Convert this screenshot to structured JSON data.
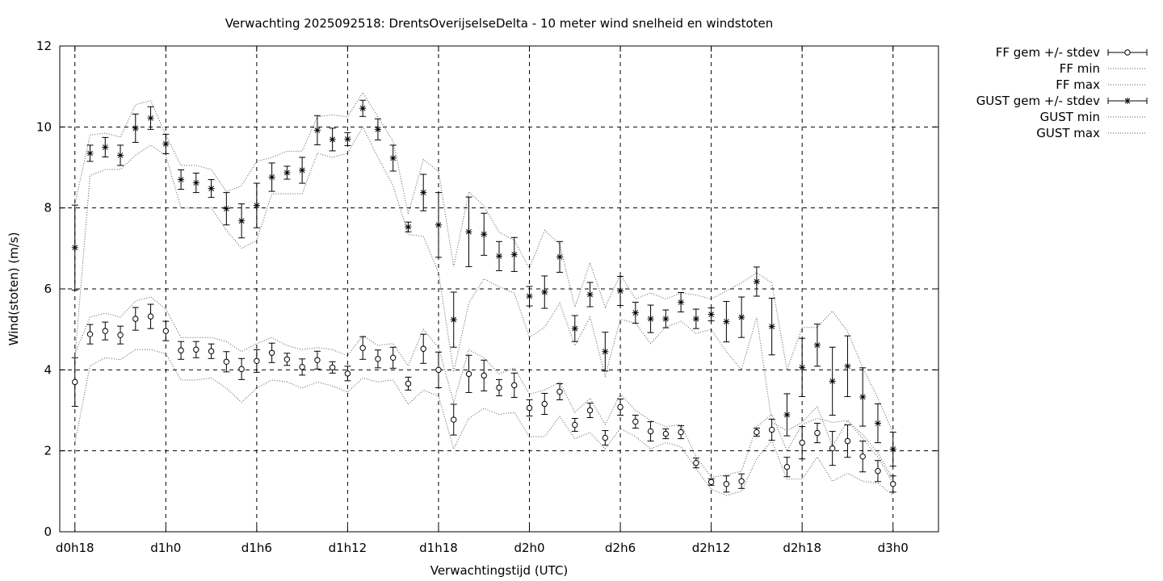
{
  "chart_data": {
    "type": "line",
    "title": "Verwachting 2025092518: DrentsOverijselseDelta - 10 meter wind snelheid en windstoten",
    "xlabel": "Verwachtingstijd (UTC)",
    "ylabel": "Wind(stoten) (m/s)",
    "xlim": [
      -1,
      57
    ],
    "ylim": [
      0,
      12
    ],
    "yticks": [
      0,
      2,
      4,
      6,
      8,
      10,
      12
    ],
    "xticks": [
      {
        "x": 0,
        "label": "d0h18"
      },
      {
        "x": 6,
        "label": "d1h0"
      },
      {
        "x": 12,
        "label": "d1h6"
      },
      {
        "x": 18,
        "label": "d1h12"
      },
      {
        "x": 24,
        "label": "d1h18"
      },
      {
        "x": 30,
        "label": "d2h0"
      },
      {
        "x": 36,
        "label": "d2h6"
      },
      {
        "x": 42,
        "label": "d2h12"
      },
      {
        "x": 48,
        "label": "d2h18"
      },
      {
        "x": 54,
        "label": "d3h0"
      }
    ],
    "grid": true,
    "legend_position": "outside-top-right",
    "x": [
      0,
      1,
      2,
      3,
      4,
      5,
      6,
      7,
      8,
      9,
      10,
      11,
      12,
      13,
      14,
      15,
      16,
      17,
      18,
      19,
      20,
      21,
      22,
      23,
      24,
      25,
      26,
      27,
      28,
      29,
      30,
      31,
      32,
      33,
      34,
      35,
      36,
      37,
      38,
      39,
      40,
      41,
      42,
      43,
      44,
      45,
      46,
      47,
      48,
      49,
      50,
      51,
      52,
      53,
      54
    ],
    "series": [
      {
        "name": "FF gem +/- stdev",
        "style": "errorbars-circle",
        "values": [
          3.7,
          4.88,
          4.96,
          4.86,
          5.26,
          5.32,
          4.96,
          4.48,
          4.5,
          4.46,
          4.2,
          4.02,
          4.22,
          4.42,
          4.26,
          4.07,
          4.24,
          4.06,
          3.91,
          4.54,
          4.27,
          4.3,
          3.66,
          4.52,
          4.0,
          2.77,
          3.9,
          3.86,
          3.56,
          3.62,
          3.06,
          3.16,
          3.46,
          2.64,
          3.0,
          2.32,
          3.08,
          2.72,
          2.48,
          2.42,
          2.46,
          1.7,
          1.23,
          1.18,
          1.25,
          2.46,
          2.52,
          1.6,
          2.2,
          2.44,
          2.06,
          2.24,
          1.86,
          1.5,
          1.18
        ],
        "stdev": [
          0.6,
          0.24,
          0.22,
          0.22,
          0.28,
          0.3,
          0.24,
          0.22,
          0.2,
          0.18,
          0.25,
          0.26,
          0.28,
          0.24,
          0.15,
          0.2,
          0.22,
          0.14,
          0.18,
          0.28,
          0.22,
          0.26,
          0.16,
          0.36,
          0.44,
          0.38,
          0.46,
          0.38,
          0.2,
          0.3,
          0.2,
          0.26,
          0.2,
          0.16,
          0.18,
          0.18,
          0.2,
          0.16,
          0.24,
          0.12,
          0.16,
          0.12,
          0.08,
          0.2,
          0.18,
          0.1,
          0.26,
          0.24,
          0.4,
          0.24,
          0.42,
          0.4,
          0.38,
          0.26,
          0.2
        ]
      },
      {
        "name": "FF min",
        "style": "dotted",
        "values": [
          2.2,
          4.1,
          4.3,
          4.25,
          4.5,
          4.5,
          4.4,
          3.75,
          3.75,
          3.8,
          3.55,
          3.2,
          3.55,
          3.75,
          3.7,
          3.55,
          3.7,
          3.6,
          3.45,
          3.8,
          3.7,
          3.75,
          3.15,
          3.5,
          3.35,
          2.05,
          2.8,
          3.05,
          2.9,
          2.95,
          2.35,
          2.35,
          2.85,
          2.3,
          2.45,
          2.05,
          2.55,
          2.35,
          2.05,
          2.2,
          2.1,
          1.55,
          1.05,
          0.9,
          1.0,
          1.8,
          2.25,
          1.3,
          1.3,
          1.85,
          1.25,
          1.45,
          1.25,
          1.2,
          0.9
        ]
      },
      {
        "name": "FF max",
        "style": "dotted",
        "values": [
          4.4,
          5.3,
          5.4,
          5.3,
          5.7,
          5.8,
          5.5,
          4.8,
          4.8,
          4.8,
          4.7,
          4.45,
          4.65,
          4.8,
          4.6,
          4.5,
          4.55,
          4.5,
          4.35,
          4.85,
          4.6,
          4.65,
          4.1,
          5.0,
          4.55,
          3.2,
          4.5,
          4.3,
          3.9,
          4.05,
          3.4,
          3.5,
          3.7,
          2.95,
          3.3,
          2.65,
          3.4,
          3.0,
          2.75,
          2.6,
          2.65,
          1.85,
          1.35,
          1.4,
          1.5,
          2.6,
          2.9,
          2.0,
          2.65,
          2.8,
          2.7,
          2.75,
          2.4,
          1.95,
          1.3
        ]
      },
      {
        "name": "GUST gem +/- stdev",
        "style": "errorbars-star",
        "values": [
          7.02,
          9.35,
          9.5,
          9.3,
          9.97,
          10.22,
          9.58,
          8.7,
          8.62,
          8.48,
          7.98,
          7.68,
          8.06,
          8.76,
          8.87,
          8.93,
          9.92,
          9.69,
          9.7,
          10.46,
          9.94,
          9.23,
          7.53,
          8.38,
          7.58,
          5.24,
          7.41,
          7.35,
          6.81,
          6.85,
          5.82,
          5.92,
          6.79,
          5.02,
          5.86,
          4.45,
          5.95,
          5.41,
          5.26,
          5.26,
          5.67,
          5.26,
          5.37,
          5.19,
          5.3,
          6.18,
          5.07,
          2.89,
          4.06,
          4.61,
          3.72,
          4.09,
          3.33,
          2.68,
          2.04
        ],
        "stdev": [
          1.05,
          0.2,
          0.24,
          0.25,
          0.35,
          0.28,
          0.24,
          0.24,
          0.24,
          0.22,
          0.4,
          0.42,
          0.55,
          0.35,
          0.16,
          0.32,
          0.36,
          0.28,
          0.16,
          0.2,
          0.26,
          0.32,
          0.12,
          0.45,
          0.8,
          0.68,
          0.86,
          0.52,
          0.36,
          0.42,
          0.24,
          0.4,
          0.38,
          0.32,
          0.3,
          0.48,
          0.36,
          0.26,
          0.34,
          0.22,
          0.24,
          0.24,
          0.16,
          0.5,
          0.5,
          0.36,
          0.7,
          0.52,
          0.72,
          0.52,
          0.84,
          0.75,
          0.72,
          0.48,
          0.42
        ]
      },
      {
        "name": "GUST min",
        "style": "dotted",
        "values": [
          4.3,
          8.8,
          8.95,
          8.95,
          9.3,
          9.55,
          9.3,
          8.0,
          8.0,
          8.0,
          7.45,
          7.0,
          7.2,
          8.35,
          8.35,
          8.35,
          9.35,
          9.25,
          9.35,
          10.0,
          9.25,
          8.55,
          7.35,
          7.3,
          6.4,
          3.95,
          5.65,
          6.25,
          6.05,
          5.9,
          4.8,
          5.05,
          5.65,
          4.6,
          5.3,
          3.85,
          5.25,
          5.15,
          4.65,
          5.05,
          5.2,
          4.9,
          5.0,
          4.45,
          4.0,
          5.3,
          2.7,
          2.5,
          2.7,
          3.1,
          2.1,
          2.75,
          2.3,
          1.85,
          1.2
        ]
      },
      {
        "name": "GUST max",
        "style": "dotted",
        "values": [
          8.1,
          9.8,
          9.85,
          9.75,
          10.55,
          10.65,
          9.8,
          9.05,
          9.05,
          8.95,
          8.4,
          8.55,
          9.15,
          9.25,
          9.4,
          9.4,
          10.25,
          10.3,
          10.25,
          10.85,
          10.25,
          9.65,
          7.85,
          9.2,
          8.9,
          6.55,
          8.4,
          8.05,
          7.4,
          7.2,
          6.5,
          7.45,
          7.1,
          5.55,
          6.65,
          5.55,
          6.35,
          5.75,
          5.9,
          5.75,
          5.9,
          5.85,
          5.75,
          5.95,
          6.15,
          6.4,
          6.15,
          4.0,
          5.05,
          5.05,
          5.45,
          4.95,
          4.05,
          3.3,
          2.45
        ]
      }
    ]
  }
}
